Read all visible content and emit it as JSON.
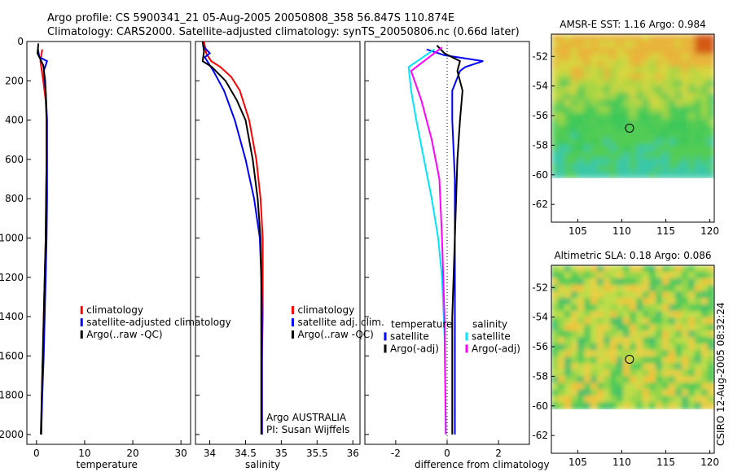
{
  "header": {
    "line1": "Argo profile: CS 5900341_21 05-Aug-2005 20050808_358 56.847S 110.874E",
    "line2": "Climatology: CARS2000. Satellite-adjusted climatology: synTS_20050806.nc (0.66d later)"
  },
  "footer": {
    "stamp": "CSIRO 12-Aug-2005 08:32:24",
    "argo_label": "Argo AUSTRALIA",
    "pi_label": "PI: Susan Wijffels"
  },
  "colors": {
    "climatology": "#ff0000",
    "satellite": "#0000ff",
    "argo": "#000000",
    "satellite_diff_salinity": "#00e5ff",
    "argo_diff_salinity": "#ff00ff"
  },
  "chart_data": [
    {
      "id": "temperature",
      "type": "line",
      "xlabel": "temperature",
      "xlim": [
        -2,
        32
      ],
      "ylim": [
        0,
        2050
      ],
      "y_reversed": true,
      "xticks": [
        0,
        10,
        20,
        30
      ],
      "yticks": [
        0,
        200,
        400,
        600,
        800,
        1000,
        1200,
        1400,
        1600,
        1800,
        2000
      ],
      "legend": {
        "position": "lower-right",
        "items": [
          {
            "label": "climatology",
            "color": "#ff0000"
          },
          {
            "label": "satellite-adjusted climatology",
            "color": "#0000ff"
          },
          {
            "label": "Argo(..raw -QC)",
            "color": "#000000"
          }
        ]
      },
      "series": [
        {
          "name": "climatology",
          "color": "#ff0000",
          "points": [
            [
              1.2,
              40
            ],
            [
              0.8,
              100
            ],
            [
              1.4,
              200
            ],
            [
              1.9,
              300
            ],
            [
              2.1,
              400
            ],
            [
              2.1,
              600
            ],
            [
              2.0,
              800
            ],
            [
              1.9,
              1000
            ],
            [
              1.7,
              1200
            ],
            [
              1.5,
              1400
            ],
            [
              1.3,
              1600
            ],
            [
              1.1,
              1800
            ],
            [
              1.0,
              2000
            ]
          ]
        },
        {
          "name": "satellite-adjusted climatology",
          "color": "#0000ff",
          "points": [
            [
              0.3,
              40
            ],
            [
              0.6,
              80
            ],
            [
              2.2,
              100
            ],
            [
              1.5,
              150
            ],
            [
              1.9,
              250
            ],
            [
              2.2,
              400
            ],
            [
              2.2,
              600
            ],
            [
              2.2,
              800
            ],
            [
              2.1,
              1000
            ],
            [
              1.9,
              1200
            ],
            [
              1.7,
              1400
            ],
            [
              1.5,
              1600
            ],
            [
              1.2,
              1800
            ],
            [
              1.0,
              2000
            ]
          ]
        },
        {
          "name": "Argo(..raw -QC)",
          "color": "#000000",
          "points": [
            [
              0.4,
              10
            ],
            [
              0.2,
              60
            ],
            [
              1.4,
              120
            ],
            [
              1.8,
              200
            ],
            [
              2.0,
              300
            ],
            [
              2.1,
              400
            ],
            [
              2.1,
              600
            ],
            [
              2.0,
              800
            ],
            [
              1.9,
              1000
            ],
            [
              1.7,
              1200
            ],
            [
              1.5,
              1400
            ],
            [
              1.3,
              1600
            ],
            [
              1.1,
              1800
            ],
            [
              0.9,
              2000
            ]
          ]
        }
      ]
    },
    {
      "id": "salinity",
      "type": "line",
      "xlabel": "salinity",
      "xlim": [
        33.8,
        36.1
      ],
      "ylim": [
        0,
        2050
      ],
      "y_reversed": true,
      "xticks": [
        34,
        34.5,
        35,
        35.5,
        36
      ],
      "yticks": [
        0,
        200,
        400,
        600,
        800,
        1000,
        1200,
        1400,
        1600,
        1800,
        2000
      ],
      "legend": {
        "position": "lower-right",
        "items": [
          {
            "label": "climatology",
            "color": "#ff0000"
          },
          {
            "label": "satellite adj. clim.",
            "color": "#0000ff"
          },
          {
            "label": "Argo(..raw -QC)",
            "color": "#000000"
          }
        ]
      },
      "series": [
        {
          "name": "climatology",
          "color": "#ff0000",
          "points": [
            [
              33.92,
              0
            ],
            [
              33.95,
              60
            ],
            [
              34.02,
              100
            ],
            [
              34.15,
              130
            ],
            [
              34.3,
              180
            ],
            [
              34.42,
              250
            ],
            [
              34.55,
              400
            ],
            [
              34.65,
              600
            ],
            [
              34.71,
              800
            ],
            [
              34.74,
              1000
            ],
            [
              34.74,
              1200
            ],
            [
              34.74,
              1400
            ],
            [
              34.73,
              1600
            ],
            [
              34.73,
              1800
            ],
            [
              34.73,
              2000
            ]
          ]
        },
        {
          "name": "satellite adj. clim.",
          "color": "#0000ff",
          "points": [
            [
              33.9,
              20
            ],
            [
              34.0,
              60
            ],
            [
              33.93,
              80
            ],
            [
              34.05,
              150
            ],
            [
              34.2,
              250
            ],
            [
              34.35,
              400
            ],
            [
              34.5,
              600
            ],
            [
              34.62,
              800
            ],
            [
              34.7,
              1000
            ],
            [
              34.72,
              1200
            ],
            [
              34.73,
              1400
            ],
            [
              34.73,
              1600
            ],
            [
              34.73,
              1800
            ],
            [
              34.73,
              2000
            ]
          ]
        },
        {
          "name": "Argo(..raw -QC)",
          "color": "#000000",
          "points": [
            [
              33.9,
              0
            ],
            [
              33.92,
              50
            ],
            [
              33.9,
              100
            ],
            [
              34.03,
              130
            ],
            [
              34.22,
              200
            ],
            [
              34.38,
              300
            ],
            [
              34.5,
              400
            ],
            [
              34.6,
              600
            ],
            [
              34.67,
              800
            ],
            [
              34.71,
              1000
            ],
            [
              34.72,
              1200
            ],
            [
              34.72,
              1400
            ],
            [
              34.72,
              1600
            ],
            [
              34.72,
              1800
            ],
            [
              34.72,
              2000
            ]
          ]
        }
      ]
    },
    {
      "id": "difference",
      "type": "line",
      "xlabel": "difference from climatology",
      "xlim": [
        -3.2,
        3.2
      ],
      "ylim": [
        0,
        2050
      ],
      "y_reversed": true,
      "xticks": [
        -2,
        0,
        2
      ],
      "yticks": [
        0,
        200,
        400,
        600,
        800,
        1000,
        1200,
        1400,
        1600,
        1800,
        2000
      ],
      "zero_line": true,
      "legend": {
        "position": "lower",
        "columns": [
          {
            "title": "temperature",
            "items": [
              {
                "label": "satellite",
                "color": "#0000ff"
              },
              {
                "label": "Argo(-adj)",
                "color": "#000000"
              }
            ]
          },
          {
            "title": "salinity",
            "items": [
              {
                "label": "satellite",
                "color": "#00e5ff"
              },
              {
                "label": "Argo(-adj)",
                "color": "#ff00ff"
              }
            ]
          }
        ]
      },
      "series": [
        {
          "name": "temperature satellite",
          "color": "#0000ff",
          "points": [
            [
              -0.8,
              40
            ],
            [
              -0.1,
              70
            ],
            [
              1.4,
              100
            ],
            [
              0.7,
              130
            ],
            [
              0.5,
              150
            ],
            [
              0.2,
              250
            ],
            [
              0.2,
              400
            ],
            [
              0.3,
              700
            ],
            [
              0.3,
              1000
            ],
            [
              0.3,
              1300
            ],
            [
              0.3,
              1600
            ],
            [
              0.3,
              2000
            ]
          ]
        },
        {
          "name": "temperature Argo(-adj)",
          "color": "#000000",
          "points": [
            [
              -0.4,
              20
            ],
            [
              -0.1,
              60
            ],
            [
              0.5,
              100
            ],
            [
              0.4,
              150
            ],
            [
              0.6,
              250
            ],
            [
              0.5,
              400
            ],
            [
              0.4,
              600
            ],
            [
              0.3,
              1000
            ],
            [
              0.2,
              1400
            ],
            [
              0.2,
              1700
            ],
            [
              0.2,
              2000
            ]
          ]
        },
        {
          "name": "salinity satellite",
          "color": "#00e5ff",
          "points": [
            [
              -0.5,
              40
            ],
            [
              -1.5,
              130
            ],
            [
              -1.4,
              250
            ],
            [
              -1.2,
              400
            ],
            [
              -0.9,
              600
            ],
            [
              -0.6,
              800
            ],
            [
              -0.35,
              1000
            ],
            [
              -0.2,
              1200
            ],
            [
              -0.1,
              1500
            ],
            [
              -0.05,
              2000
            ]
          ]
        },
        {
          "name": "salinity Argo(-adj)",
          "color": "#ff00ff",
          "points": [
            [
              -0.2,
              30
            ],
            [
              -1.4,
              150
            ],
            [
              -1.0,
              300
            ],
            [
              -0.6,
              500
            ],
            [
              -0.3,
              700
            ],
            [
              -0.2,
              1000
            ],
            [
              -0.1,
              1400
            ],
            [
              -0.05,
              2000
            ]
          ]
        }
      ]
    },
    {
      "id": "sst_map",
      "type": "heatmap",
      "title": "AMSR-E SST: 1.16 Argo: 0.984",
      "xlim": [
        102,
        120.5
      ],
      "ylim": [
        -63.2,
        -50.5
      ],
      "xticks": [
        105,
        110,
        115,
        120
      ],
      "yticks": [
        -52,
        -54,
        -56,
        -58,
        -60,
        -62
      ],
      "data_extent_lat": [
        -60.2,
        -50.5
      ],
      "marker": {
        "lon": 110.874,
        "lat": -56.847
      }
    },
    {
      "id": "sla_map",
      "type": "heatmap",
      "title": "Altimetric SLA: 0.18 Argo: 0.086",
      "xlim": [
        102,
        120.5
      ],
      "ylim": [
        -63.2,
        -50.5
      ],
      "xticks": [
        105,
        110,
        115,
        120
      ],
      "yticks": [
        -52,
        -54,
        -56,
        -58,
        -60,
        -62
      ],
      "data_extent_lat": [
        -60.2,
        -50.5
      ],
      "marker": {
        "lon": 110.874,
        "lat": -56.847
      }
    }
  ]
}
